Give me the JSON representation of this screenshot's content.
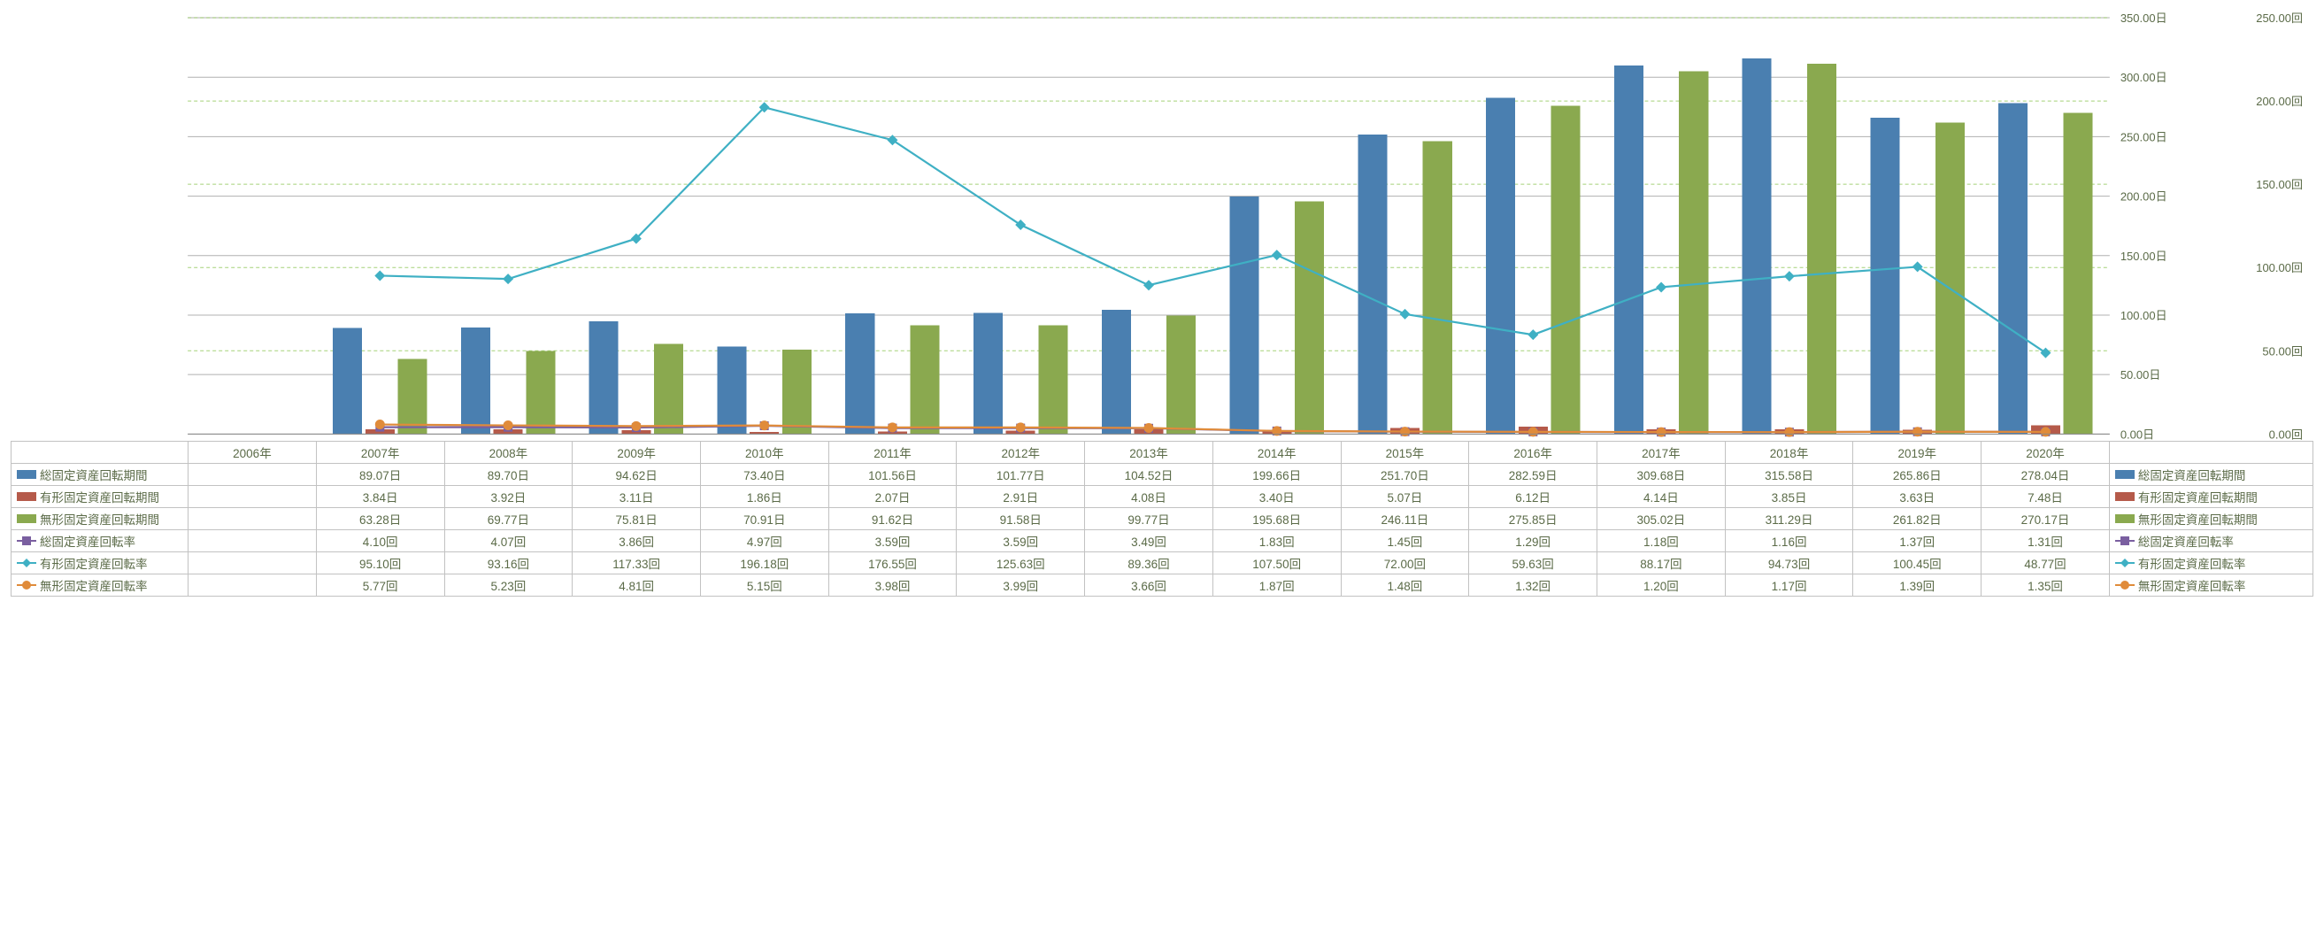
{
  "chart": {
    "type": "combo-bar-line",
    "background_color": "#ffffff",
    "plot_border_color": "#c8c8c8",
    "grid_right_color": "#7fbf3f",
    "grid_left_color": "#b0b0b0",
    "font_color": "#5b6b48",
    "years": [
      "2006年",
      "2007年",
      "2008年",
      "2009年",
      "2010年",
      "2011年",
      "2012年",
      "2013年",
      "2014年",
      "2015年",
      "2016年",
      "2017年",
      "2018年",
      "2019年",
      "2020年"
    ],
    "axis_left": {
      "min": 0,
      "max": 350,
      "step": 50,
      "unit": "日"
    },
    "axis_right": {
      "min": 0,
      "max": 250,
      "step": 50,
      "unit": "回"
    },
    "series": [
      {
        "id": "sokotei_kikan",
        "label": "総固定資産回転期間",
        "type": "bar",
        "color": "#4a7fb0",
        "axis": "left",
        "unit": "日",
        "decimals": 2,
        "values": [
          null,
          89.07,
          89.7,
          94.62,
          73.4,
          101.56,
          101.77,
          104.52,
          199.66,
          251.7,
          282.59,
          309.68,
          315.58,
          265.86,
          278.04
        ]
      },
      {
        "id": "yukei_kikan",
        "label": "有形固定資産回転期間",
        "type": "bar",
        "color": "#b55a4a",
        "axis": "left",
        "unit": "日",
        "decimals": 2,
        "values": [
          null,
          3.84,
          3.92,
          3.11,
          1.86,
          2.07,
          2.91,
          4.08,
          3.4,
          5.07,
          6.12,
          4.14,
          3.85,
          3.63,
          7.48
        ]
      },
      {
        "id": "mukei_kikan",
        "label": "無形固定資産回転期間",
        "type": "bar",
        "color": "#8aa94f",
        "axis": "left",
        "unit": "日",
        "decimals": 2,
        "values": [
          null,
          63.28,
          69.77,
          75.81,
          70.91,
          91.62,
          91.58,
          99.77,
          195.68,
          246.11,
          275.85,
          305.02,
          311.29,
          261.82,
          270.17
        ]
      },
      {
        "id": "sokotei_ritsu",
        "label": "総固定資産回転率",
        "type": "line",
        "color": "#7a5fa0",
        "axis": "right",
        "unit": "回",
        "decimals": 2,
        "marker": "square",
        "values": [
          null,
          4.1,
          4.07,
          3.86,
          4.97,
          3.59,
          3.59,
          3.49,
          1.83,
          1.45,
          1.29,
          1.18,
          1.16,
          1.37,
          1.31
        ]
      },
      {
        "id": "yukei_ritsu",
        "label": "有形固定資産回転率",
        "type": "line",
        "color": "#3fb0c4",
        "axis": "right",
        "unit": "回",
        "decimals": 2,
        "marker": "diamond",
        "values": [
          null,
          95.1,
          93.16,
          117.33,
          196.18,
          176.55,
          125.63,
          89.36,
          107.5,
          72.0,
          59.63,
          88.17,
          94.73,
          100.45,
          48.77
        ]
      },
      {
        "id": "mukei_ritsu",
        "label": "無形固定資産回転率",
        "type": "line",
        "color": "#e08b3a",
        "axis": "right",
        "unit": "回",
        "decimals": 2,
        "marker": "circle",
        "values": [
          null,
          5.77,
          5.23,
          4.81,
          5.15,
          3.98,
          3.99,
          3.66,
          1.87,
          1.48,
          1.32,
          1.2,
          1.17,
          1.39,
          1.35
        ]
      }
    ]
  }
}
